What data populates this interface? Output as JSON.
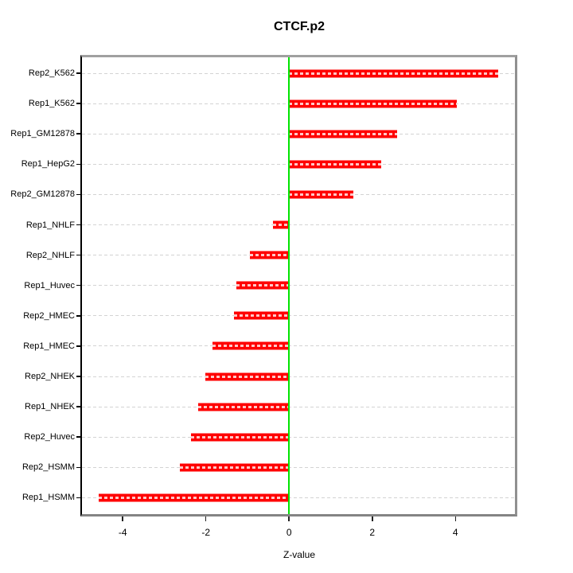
{
  "chart_data": {
    "type": "bar",
    "orientation": "horizontal",
    "title": "CTCF.p2",
    "xlabel": "Z-value",
    "ylabel": "",
    "categories": [
      "Rep2_K562",
      "Rep1_K562",
      "Rep1_GM12878",
      "Rep1_HepG2",
      "Rep2_GM12878",
      "Rep1_NHLF",
      "Rep2_NHLF",
      "Rep1_Huvec",
      "Rep2_HMEC",
      "Rep1_HMEC",
      "Rep2_NHEK",
      "Rep1_NHEK",
      "Rep2_Huvec",
      "Rep2_HSMM",
      "Rep1_HSMM"
    ],
    "values": [
      5.03,
      4.03,
      2.6,
      2.22,
      1.54,
      -0.38,
      -0.94,
      -1.27,
      -1.32,
      -1.85,
      -2.01,
      -2.19,
      -2.36,
      -2.63,
      -4.57
    ],
    "xlim": [
      -4.98,
      5.43
    ],
    "xticks": [
      -4,
      -2,
      0,
      2,
      4
    ],
    "zero_reference_line": 0,
    "grid": "dashed horizontal line per category",
    "legend": "none",
    "colors": {
      "bar": "#ff0000",
      "zero_line": "#00e400",
      "grid_line": "#d3d3d3",
      "grid_line_over_bar": "#ffffff",
      "box_border": "#909090",
      "left_axis": "#000000",
      "text": "#000000",
      "background": "#ffffff"
    }
  }
}
